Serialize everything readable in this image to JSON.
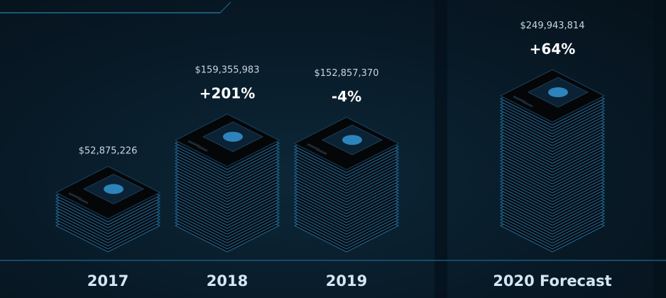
{
  "chart_data": {
    "type": "bar",
    "categories": [
      "2017",
      "2018",
      "2019",
      "2020 Forecast"
    ],
    "values": [
      52875226,
      159355983,
      152857370,
      249943814
    ],
    "value_labels": [
      "$52,875,226",
      "$159,355,983",
      "$152,857,370",
      "$249,943,814"
    ],
    "change_labels": [
      "",
      "+201%",
      "-4%",
      "+64%"
    ],
    "title": "",
    "xlabel": "",
    "ylabel": "",
    "grid": false,
    "colors": {
      "layer_stroke": "#1f6e9e",
      "layer_fill": "#080b10",
      "screen_glow": "#3aa6e8",
      "year_text": "#d2e8f3"
    }
  }
}
